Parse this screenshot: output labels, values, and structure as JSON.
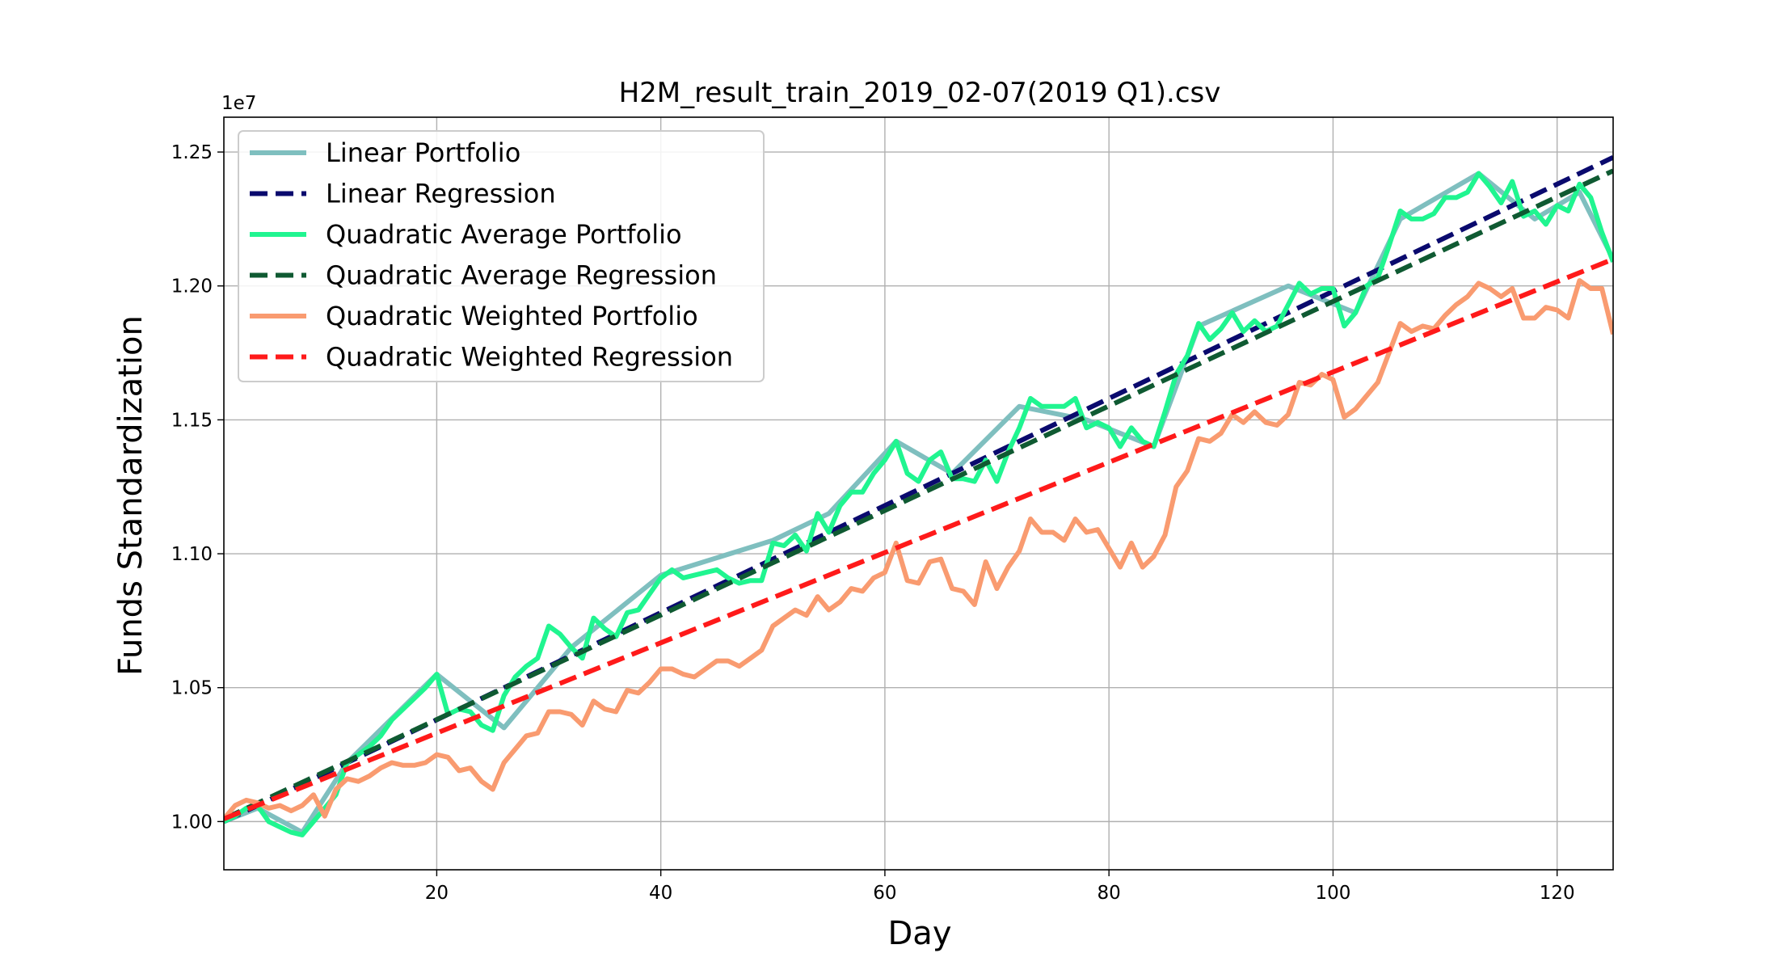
{
  "chart_data": {
    "type": "line",
    "title": "H2M_result_train_2019_02-07(2019 Q1).csv",
    "xlabel": "Day",
    "ylabel": "Funds Standardization",
    "y_offset_label": "1e7",
    "xlim": [
      1,
      125
    ],
    "ylim": [
      9.82,
      12.63
    ],
    "x_ticks": [
      20,
      40,
      60,
      80,
      100,
      120
    ],
    "x_tick_labels": [
      "20",
      "40",
      "60",
      "80",
      "100",
      "120"
    ],
    "y_ticks": [
      10.0,
      10.5,
      11.0,
      11.5,
      12.0,
      12.5
    ],
    "y_tick_labels": [
      "1.00",
      "1.05",
      "1.10",
      "1.15",
      "1.20",
      "1.25"
    ],
    "grid": true,
    "legend_position": "upper-left",
    "series": [
      {
        "name": "Linear Portfolio",
        "style": "solid",
        "color": "#7fbfbf",
        "points": [
          [
            1,
            10.0
          ],
          [
            4,
            10.05
          ],
          [
            8,
            9.96
          ],
          [
            12,
            10.22
          ],
          [
            20,
            10.55
          ],
          [
            26,
            10.35
          ],
          [
            32,
            10.65
          ],
          [
            40,
            10.92
          ],
          [
            50,
            11.05
          ],
          [
            55,
            11.15
          ],
          [
            61,
            11.42
          ],
          [
            66,
            11.3
          ],
          [
            72,
            11.55
          ],
          [
            78,
            11.5
          ],
          [
            84,
            11.4
          ],
          [
            88,
            11.85
          ],
          [
            96,
            12.0
          ],
          [
            102,
            11.9
          ],
          [
            106,
            12.25
          ],
          [
            113,
            12.42
          ],
          [
            118,
            12.25
          ],
          [
            122,
            12.35
          ],
          [
            125,
            12.1
          ]
        ]
      },
      {
        "name": "Linear Regression",
        "style": "dashed",
        "color": "#0a0a6e",
        "points": [
          [
            1,
            10.0
          ],
          [
            125,
            12.48
          ]
        ]
      },
      {
        "name": "Quadratic Average Portfolio",
        "style": "solid",
        "color": "#20f590",
        "points": [
          [
            1,
            10.0
          ],
          [
            2,
            10.02
          ],
          [
            3,
            10.05
          ],
          [
            4,
            10.06
          ],
          [
            5,
            10.0
          ],
          [
            6,
            9.98
          ],
          [
            7,
            9.96
          ],
          [
            8,
            9.95
          ],
          [
            9,
            10.0
          ],
          [
            10,
            10.05
          ],
          [
            11,
            10.1
          ],
          [
            12,
            10.22
          ],
          [
            13,
            10.25
          ],
          [
            14,
            10.28
          ],
          [
            15,
            10.32
          ],
          [
            16,
            10.38
          ],
          [
            17,
            10.42
          ],
          [
            18,
            10.46
          ],
          [
            19,
            10.5
          ],
          [
            20,
            10.55
          ],
          [
            21,
            10.4
          ],
          [
            22,
            10.42
          ],
          [
            23,
            10.41
          ],
          [
            24,
            10.36
          ],
          [
            25,
            10.34
          ],
          [
            26,
            10.47
          ],
          [
            27,
            10.54
          ],
          [
            28,
            10.58
          ],
          [
            29,
            10.61
          ],
          [
            30,
            10.73
          ],
          [
            31,
            10.7
          ],
          [
            32,
            10.65
          ],
          [
            33,
            10.61
          ],
          [
            34,
            10.76
          ],
          [
            35,
            10.72
          ],
          [
            36,
            10.69
          ],
          [
            37,
            10.78
          ],
          [
            38,
            10.79
          ],
          [
            39,
            10.85
          ],
          [
            40,
            10.91
          ],
          [
            41,
            10.94
          ],
          [
            42,
            10.91
          ],
          [
            43,
            10.92
          ],
          [
            44,
            10.93
          ],
          [
            45,
            10.94
          ],
          [
            46,
            10.91
          ],
          [
            47,
            10.89
          ],
          [
            48,
            10.9
          ],
          [
            49,
            10.9
          ],
          [
            50,
            11.04
          ],
          [
            51,
            11.03
          ],
          [
            52,
            11.07
          ],
          [
            53,
            11.01
          ],
          [
            54,
            11.15
          ],
          [
            55,
            11.08
          ],
          [
            56,
            11.18
          ],
          [
            57,
            11.23
          ],
          [
            58,
            11.23
          ],
          [
            59,
            11.3
          ],
          [
            60,
            11.35
          ],
          [
            61,
            11.42
          ],
          [
            62,
            11.3
          ],
          [
            63,
            11.27
          ],
          [
            64,
            11.35
          ],
          [
            65,
            11.38
          ],
          [
            66,
            11.28
          ],
          [
            67,
            11.28
          ],
          [
            68,
            11.27
          ],
          [
            69,
            11.35
          ],
          [
            70,
            11.27
          ],
          [
            71,
            11.38
          ],
          [
            72,
            11.47
          ],
          [
            73,
            11.58
          ],
          [
            74,
            11.55
          ],
          [
            75,
            11.55
          ],
          [
            76,
            11.55
          ],
          [
            77,
            11.58
          ],
          [
            78,
            11.47
          ],
          [
            79,
            11.49
          ],
          [
            80,
            11.47
          ],
          [
            81,
            11.4
          ],
          [
            82,
            11.47
          ],
          [
            83,
            11.42
          ],
          [
            84,
            11.4
          ],
          [
            85,
            11.53
          ],
          [
            86,
            11.67
          ],
          [
            87,
            11.74
          ],
          [
            88,
            11.86
          ],
          [
            89,
            11.8
          ],
          [
            90,
            11.84
          ],
          [
            91,
            11.9
          ],
          [
            92,
            11.83
          ],
          [
            93,
            11.87
          ],
          [
            94,
            11.83
          ],
          [
            95,
            11.85
          ],
          [
            96,
            11.93
          ],
          [
            97,
            12.01
          ],
          [
            98,
            11.97
          ],
          [
            99,
            11.99
          ],
          [
            100,
            11.99
          ],
          [
            101,
            11.85
          ],
          [
            102,
            11.9
          ],
          [
            103,
            12.0
          ],
          [
            104,
            12.03
          ],
          [
            105,
            12.15
          ],
          [
            106,
            12.28
          ],
          [
            107,
            12.25
          ],
          [
            108,
            12.25
          ],
          [
            109,
            12.27
          ],
          [
            110,
            12.33
          ],
          [
            111,
            12.33
          ],
          [
            112,
            12.35
          ],
          [
            113,
            12.42
          ],
          [
            114,
            12.37
          ],
          [
            115,
            12.31
          ],
          [
            116,
            12.39
          ],
          [
            117,
            12.26
          ],
          [
            118,
            12.28
          ],
          [
            119,
            12.23
          ],
          [
            120,
            12.3
          ],
          [
            121,
            12.28
          ],
          [
            122,
            12.38
          ],
          [
            123,
            12.33
          ],
          [
            124,
            12.2
          ],
          [
            125,
            12.09
          ]
        ]
      },
      {
        "name": "Quadratic Average Regression",
        "style": "dashed",
        "color": "#0f5a32",
        "points": [
          [
            1,
            10.01
          ],
          [
            125,
            12.43
          ]
        ]
      },
      {
        "name": "Quadratic Weighted Portfolio",
        "style": "solid",
        "color": "#f99b70",
        "points": [
          [
            1,
            10.01
          ],
          [
            2,
            10.06
          ],
          [
            3,
            10.08
          ],
          [
            4,
            10.07
          ],
          [
            5,
            10.05
          ],
          [
            6,
            10.06
          ],
          [
            7,
            10.04
          ],
          [
            8,
            10.06
          ],
          [
            9,
            10.1
          ],
          [
            10,
            10.02
          ],
          [
            11,
            10.12
          ],
          [
            12,
            10.16
          ],
          [
            13,
            10.15
          ],
          [
            14,
            10.17
          ],
          [
            15,
            10.2
          ],
          [
            16,
            10.22
          ],
          [
            17,
            10.21
          ],
          [
            18,
            10.21
          ],
          [
            19,
            10.22
          ],
          [
            20,
            10.25
          ],
          [
            21,
            10.24
          ],
          [
            22,
            10.19
          ],
          [
            23,
            10.2
          ],
          [
            24,
            10.15
          ],
          [
            25,
            10.12
          ],
          [
            26,
            10.22
          ],
          [
            27,
            10.27
          ],
          [
            28,
            10.32
          ],
          [
            29,
            10.33
          ],
          [
            30,
            10.41
          ],
          [
            31,
            10.41
          ],
          [
            32,
            10.4
          ],
          [
            33,
            10.36
          ],
          [
            34,
            10.45
          ],
          [
            35,
            10.42
          ],
          [
            36,
            10.41
          ],
          [
            37,
            10.49
          ],
          [
            38,
            10.48
          ],
          [
            39,
            10.52
          ],
          [
            40,
            10.57
          ],
          [
            41,
            10.57
          ],
          [
            42,
            10.55
          ],
          [
            43,
            10.54
          ],
          [
            44,
            10.57
          ],
          [
            45,
            10.6
          ],
          [
            46,
            10.6
          ],
          [
            47,
            10.58
          ],
          [
            48,
            10.61
          ],
          [
            49,
            10.64
          ],
          [
            50,
            10.73
          ],
          [
            51,
            10.76
          ],
          [
            52,
            10.79
          ],
          [
            53,
            10.77
          ],
          [
            54,
            10.84
          ],
          [
            55,
            10.79
          ],
          [
            56,
            10.82
          ],
          [
            57,
            10.87
          ],
          [
            58,
            10.86
          ],
          [
            59,
            10.91
          ],
          [
            60,
            10.93
          ],
          [
            61,
            11.04
          ],
          [
            62,
            10.9
          ],
          [
            63,
            10.89
          ],
          [
            64,
            10.97
          ],
          [
            65,
            10.98
          ],
          [
            66,
            10.87
          ],
          [
            67,
            10.86
          ],
          [
            68,
            10.81
          ],
          [
            69,
            10.97
          ],
          [
            70,
            10.87
          ],
          [
            71,
            10.95
          ],
          [
            72,
            11.01
          ],
          [
            73,
            11.13
          ],
          [
            74,
            11.08
          ],
          [
            75,
            11.08
          ],
          [
            76,
            11.05
          ],
          [
            77,
            11.13
          ],
          [
            78,
            11.08
          ],
          [
            79,
            11.09
          ],
          [
            80,
            11.02
          ],
          [
            81,
            10.95
          ],
          [
            82,
            11.04
          ],
          [
            83,
            10.95
          ],
          [
            84,
            10.99
          ],
          [
            85,
            11.07
          ],
          [
            86,
            11.25
          ],
          [
            87,
            11.31
          ],
          [
            88,
            11.43
          ],
          [
            89,
            11.42
          ],
          [
            90,
            11.45
          ],
          [
            91,
            11.52
          ],
          [
            92,
            11.49
          ],
          [
            93,
            11.53
          ],
          [
            94,
            11.49
          ],
          [
            95,
            11.48
          ],
          [
            96,
            11.52
          ],
          [
            97,
            11.64
          ],
          [
            98,
            11.63
          ],
          [
            99,
            11.67
          ],
          [
            100,
            11.65
          ],
          [
            101,
            11.51
          ],
          [
            102,
            11.54
          ],
          [
            103,
            11.59
          ],
          [
            104,
            11.64
          ],
          [
            105,
            11.75
          ],
          [
            106,
            11.86
          ],
          [
            107,
            11.83
          ],
          [
            108,
            11.85
          ],
          [
            109,
            11.84
          ],
          [
            110,
            11.89
          ],
          [
            111,
            11.93
          ],
          [
            112,
            11.96
          ],
          [
            113,
            12.01
          ],
          [
            114,
            11.99
          ],
          [
            115,
            11.96
          ],
          [
            116,
            11.99
          ],
          [
            117,
            11.88
          ],
          [
            118,
            11.88
          ],
          [
            119,
            11.92
          ],
          [
            120,
            11.91
          ],
          [
            121,
            11.88
          ],
          [
            122,
            12.02
          ],
          [
            123,
            11.99
          ],
          [
            124,
            11.99
          ],
          [
            125,
            11.82
          ]
        ]
      },
      {
        "name": "Quadratic Weighted Regression",
        "style": "dashed",
        "color": "#ff1a1a",
        "points": [
          [
            1,
            10.01
          ],
          [
            125,
            12.1
          ]
        ]
      }
    ]
  }
}
